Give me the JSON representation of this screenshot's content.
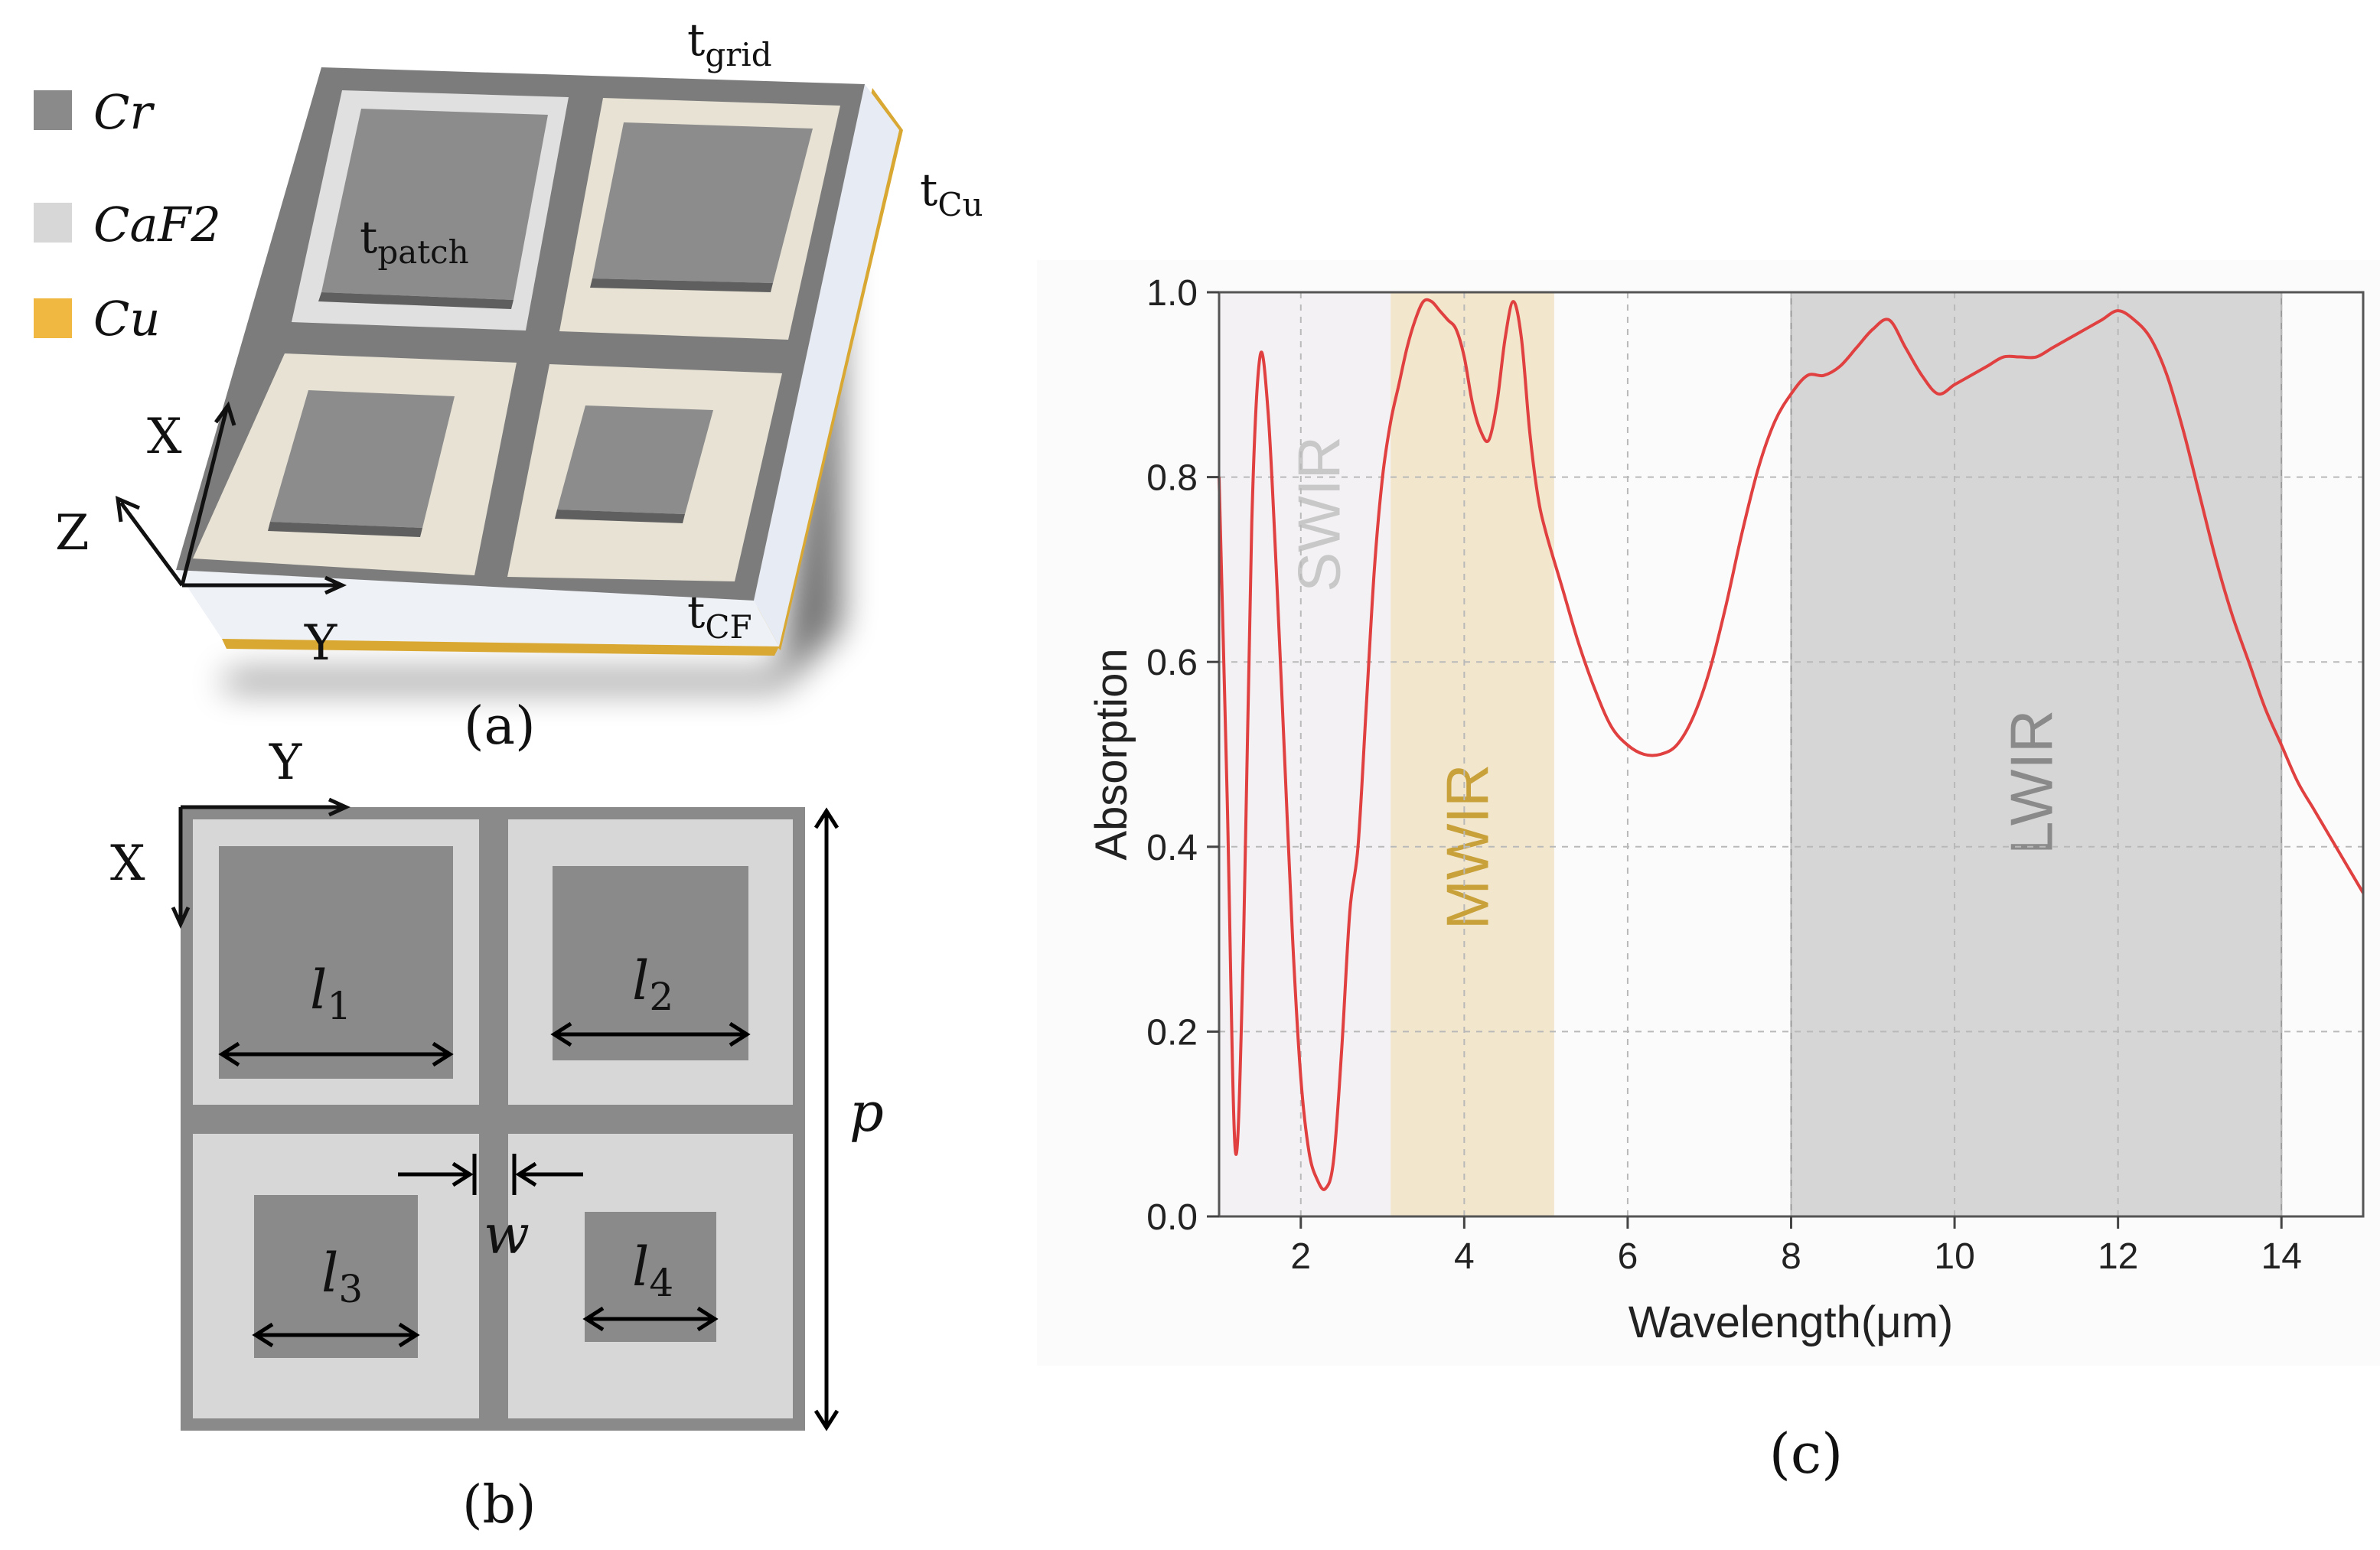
{
  "legend": {
    "items": [
      {
        "label": "Cr",
        "color": "#8a8a8a"
      },
      {
        "label": "CaF2",
        "color": "#d7d7d7"
      },
      {
        "label": "Cu",
        "color": "#f0b840"
      }
    ]
  },
  "panel_a": {
    "caption": "(a)",
    "labels": {
      "t_grid": "t",
      "t_grid_sub": "grid",
      "t_cu": "t",
      "t_cu_sub": "Cu",
      "t_patch": "t",
      "t_patch_sub": "patch",
      "t_cf": "t",
      "t_cf_sub": "CF"
    },
    "axes": {
      "x": "X",
      "y": "Y",
      "z": "Z"
    }
  },
  "panel_b": {
    "caption": "(b)",
    "axes": {
      "x": "X",
      "y": "Y"
    },
    "labels": {
      "l1": "l",
      "l1_sub": "1",
      "l2": "l",
      "l2_sub": "2",
      "l3": "l",
      "l3_sub": "3",
      "l4": "l",
      "l4_sub": "4",
      "w": "w",
      "p": "p"
    }
  },
  "panel_c": {
    "caption": "(c)"
  },
  "chart_data": {
    "type": "line",
    "xlabel": "Wavelength(μm)",
    "ylabel": "Absorption",
    "xlim": [
      1,
      15
    ],
    "ylim": [
      0,
      1
    ],
    "xticks": [
      "2",
      "4",
      "6",
      "8",
      "10",
      "12",
      "14"
    ],
    "yticks": [
      "0.0",
      "0.2",
      "0.4",
      "0.6",
      "0.8",
      "1.0"
    ],
    "grid": true,
    "bands": [
      {
        "name": "SWIR",
        "start": 1,
        "end": 3.1,
        "color": "#f3f1f4",
        "label_color": "#c8c8c8"
      },
      {
        "name": "MWIR",
        "start": 3.1,
        "end": 5.1,
        "color": "#f2e6cc",
        "label_color": "#c9a13a"
      },
      {
        "name": "LWIR",
        "start": 8,
        "end": 14,
        "color": "#d6d6d6",
        "label_color": "#8a8a8a"
      }
    ],
    "series": [
      {
        "name": "Absorption",
        "color": "#e04040",
        "x": [
          1.0,
          1.1,
          1.2,
          1.3,
          1.4,
          1.5,
          1.6,
          1.7,
          1.8,
          1.9,
          2.0,
          2.1,
          2.2,
          2.3,
          2.4,
          2.5,
          2.6,
          2.7,
          2.8,
          2.9,
          3.0,
          3.1,
          3.2,
          3.3,
          3.4,
          3.5,
          3.6,
          3.7,
          3.8,
          3.9,
          4.0,
          4.1,
          4.2,
          4.3,
          4.4,
          4.5,
          4.6,
          4.7,
          4.8,
          4.9,
          5.0,
          5.2,
          5.4,
          5.6,
          5.8,
          6.0,
          6.2,
          6.4,
          6.6,
          6.8,
          7.0,
          7.2,
          7.4,
          7.6,
          7.8,
          8.0,
          8.2,
          8.4,
          8.6,
          8.8,
          9.0,
          9.2,
          9.4,
          9.6,
          9.8,
          10.0,
          10.2,
          10.4,
          10.6,
          10.8,
          11.0,
          11.2,
          11.4,
          11.6,
          11.8,
          12.0,
          12.2,
          12.4,
          12.6,
          12.8,
          13.0,
          13.2,
          13.4,
          13.6,
          13.8,
          14.0,
          14.2,
          14.4,
          14.6,
          14.8,
          15.0
        ],
        "values": [
          0.8,
          0.45,
          0.07,
          0.3,
          0.75,
          0.93,
          0.87,
          0.7,
          0.5,
          0.3,
          0.15,
          0.07,
          0.04,
          0.03,
          0.06,
          0.18,
          0.33,
          0.4,
          0.55,
          0.7,
          0.8,
          0.86,
          0.9,
          0.94,
          0.97,
          0.99,
          0.99,
          0.98,
          0.97,
          0.96,
          0.93,
          0.88,
          0.85,
          0.84,
          0.88,
          0.95,
          0.99,
          0.95,
          0.85,
          0.78,
          0.74,
          0.68,
          0.62,
          0.57,
          0.53,
          0.51,
          0.5,
          0.5,
          0.51,
          0.54,
          0.59,
          0.66,
          0.74,
          0.81,
          0.86,
          0.89,
          0.91,
          0.91,
          0.92,
          0.94,
          0.96,
          0.97,
          0.94,
          0.91,
          0.89,
          0.9,
          0.91,
          0.92,
          0.93,
          0.93,
          0.93,
          0.94,
          0.95,
          0.96,
          0.97,
          0.98,
          0.97,
          0.95,
          0.91,
          0.85,
          0.78,
          0.71,
          0.65,
          0.6,
          0.55,
          0.51,
          0.47,
          0.44,
          0.41,
          0.38,
          0.35
        ]
      }
    ]
  }
}
